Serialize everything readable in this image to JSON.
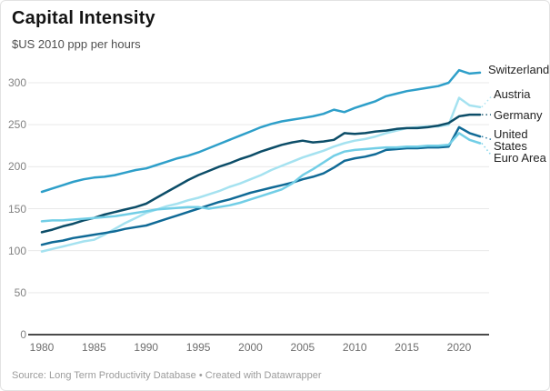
{
  "header": {
    "title": "Capital Intensity",
    "subtitle": "$US 2010 ppp per hours"
  },
  "footer": {
    "source": "Source: Long Term Productivity Database • Created with Datawrapper"
  },
  "colors": {
    "background": "#ffffff",
    "gridline": "#e9e9e9",
    "axis_baseline": "#4a4a4a",
    "tick_text": "#828282",
    "switzerland": "#2e9fc9",
    "austria": "#a5e2f0",
    "germany": "#0c4d68",
    "united_states": "#106a96",
    "euro_area": "#72cee6"
  },
  "chart_data": {
    "type": "line",
    "title": "Capital Intensity",
    "subtitle": "$US 2010 ppp per hours",
    "xlabel": "",
    "ylabel": "$US 2010 ppp per hours",
    "grid": "horizontal",
    "legend_position": "direct-labels-right",
    "xlim": [
      1980,
      2022
    ],
    "ylim": [
      0,
      316
    ],
    "x_ticks": [
      1980,
      1985,
      1990,
      1995,
      2000,
      2005,
      2010,
      2015,
      2020
    ],
    "y_ticks": [
      0,
      50,
      100,
      150,
      200,
      250,
      300
    ],
    "x": [
      1980,
      1981,
      1982,
      1983,
      1984,
      1985,
      1986,
      1987,
      1988,
      1989,
      1990,
      1991,
      1992,
      1993,
      1994,
      1995,
      1996,
      1997,
      1998,
      1999,
      2000,
      2001,
      2002,
      2003,
      2004,
      2005,
      2006,
      2007,
      2008,
      2009,
      2010,
      2011,
      2012,
      2013,
      2014,
      2015,
      2016,
      2017,
      2018,
      2019,
      2020,
      2021,
      2022
    ],
    "series": [
      {
        "name": "Switzerland",
        "label_lines": [
          "Switzerland"
        ],
        "color_key": "switzerland",
        "label_dy": -3,
        "leader": false,
        "values": [
          170,
          174,
          178,
          182,
          185,
          187,
          188,
          190,
          193,
          196,
          198,
          202,
          206,
          210,
          213,
          217,
          222,
          227,
          232,
          237,
          242,
          247,
          251,
          254,
          256,
          258,
          260,
          263,
          268,
          265,
          270,
          274,
          278,
          284,
          287,
          290,
          292,
          294,
          296,
          300,
          315,
          311,
          312
        ]
      },
      {
        "name": "Austria",
        "label_lines": [
          "Austria"
        ],
        "color_key": "austria",
        "label_dy": -14,
        "leader": true,
        "values": [
          99,
          102,
          105,
          108,
          111,
          113,
          119,
          126,
          133,
          139,
          145,
          149,
          153,
          156,
          160,
          163,
          167,
          171,
          176,
          180,
          185,
          190,
          196,
          201,
          206,
          211,
          215,
          219,
          224,
          228,
          231,
          233,
          236,
          240,
          243,
          246,
          247,
          248,
          248,
          250,
          282,
          273,
          271
        ]
      },
      {
        "name": "Germany",
        "label_lines": [
          "Germany"
        ],
        "color_key": "germany",
        "label_dy": 0,
        "leader": true,
        "values": [
          122,
          125,
          129,
          132,
          136,
          139,
          143,
          146,
          149,
          152,
          156,
          163,
          170,
          177,
          184,
          190,
          195,
          200,
          204,
          209,
          213,
          218,
          222,
          226,
          229,
          231,
          229,
          230,
          232,
          240,
          239,
          240,
          242,
          243,
          245,
          246,
          246,
          247,
          249,
          252,
          260,
          262,
          262
        ]
      },
      {
        "name": "United States",
        "label_lines": [
          "United",
          "States"
        ],
        "color_key": "united_states",
        "label_dy": 4,
        "leader": true,
        "values": [
          107,
          110,
          112,
          115,
          117,
          119,
          121,
          123,
          126,
          128,
          130,
          134,
          138,
          142,
          146,
          150,
          154,
          158,
          161,
          165,
          169,
          172,
          175,
          178,
          181,
          185,
          188,
          192,
          199,
          207,
          210,
          212,
          215,
          220,
          221,
          222,
          222,
          223,
          223,
          224,
          247,
          240,
          236
        ]
      },
      {
        "name": "Euro Area",
        "label_lines": [
          "Euro Area"
        ],
        "color_key": "euro_area",
        "label_dy": 16,
        "leader": true,
        "values": [
          135,
          136,
          136,
          137,
          138,
          139,
          140,
          141,
          143,
          145,
          147,
          149,
          150,
          151,
          152,
          152,
          150,
          152,
          154,
          157,
          161,
          165,
          169,
          173,
          180,
          190,
          197,
          205,
          213,
          218,
          220,
          221,
          222,
          223,
          223,
          224,
          224,
          225,
          225,
          226,
          240,
          232,
          228
        ]
      }
    ]
  }
}
